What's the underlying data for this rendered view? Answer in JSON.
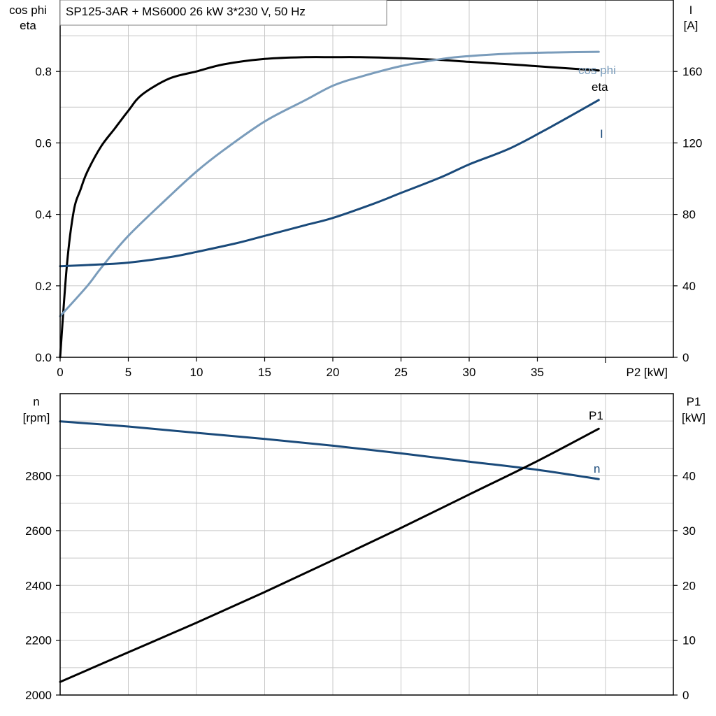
{
  "chart_data": [
    {
      "type": "line",
      "title": "SP125-3AR + MS6000   26 kW   3*230 V, 50 Hz",
      "xlabel": "P2 [kW]",
      "xlim": [
        0,
        45
      ],
      "x_ticks": [
        0,
        5,
        10,
        15,
        20,
        25,
        30,
        35
      ],
      "ylabel_left": [
        "cos phi",
        "eta"
      ],
      "ylim_left": [
        0,
        1.0
      ],
      "y_ticks_left": [
        "0.0",
        "0.2",
        "0.4",
        "0.6",
        "0.8"
      ],
      "y_tick_values_left": [
        0.0,
        0.2,
        0.4,
        0.6,
        0.8
      ],
      "ylabel_right": [
        "I",
        "[A]"
      ],
      "ylim_right": [
        0,
        200
      ],
      "y_ticks_right": [
        "0",
        "40",
        "80",
        "120",
        "160"
      ],
      "y_tick_values_right": [
        0,
        40,
        80,
        120,
        160
      ],
      "grid": true,
      "series": [
        {
          "name": "eta",
          "axis": "left",
          "color": "#000000",
          "x": [
            0,
            0.5,
            1,
            1.5,
            2,
            3,
            4,
            5,
            6,
            8,
            10,
            12,
            15,
            18,
            20,
            22,
            25,
            28,
            30,
            33,
            36,
            39.5
          ],
          "y": [
            0.0,
            0.26,
            0.41,
            0.47,
            0.52,
            0.59,
            0.64,
            0.69,
            0.735,
            0.78,
            0.8,
            0.82,
            0.835,
            0.84,
            0.84,
            0.84,
            0.837,
            0.832,
            0.827,
            0.82,
            0.812,
            0.803
          ]
        },
        {
          "name": "cos phi",
          "axis": "left",
          "color": "#7a9cbb",
          "x": [
            0,
            2,
            3,
            5,
            8,
            10,
            12,
            15,
            18,
            20,
            22,
            25,
            28,
            30,
            33,
            36,
            39.5
          ],
          "y": [
            0.115,
            0.2,
            0.25,
            0.34,
            0.45,
            0.52,
            0.58,
            0.66,
            0.72,
            0.76,
            0.785,
            0.815,
            0.835,
            0.843,
            0.85,
            0.853,
            0.855
          ]
        },
        {
          "name": "I",
          "axis": "right",
          "color": "#1a4a7a",
          "x": [
            0,
            3,
            5,
            8,
            10,
            13,
            15,
            18,
            20,
            23,
            25,
            28,
            30,
            33,
            36,
            39.5
          ],
          "y": [
            51,
            52,
            53,
            56,
            59,
            64,
            68,
            74,
            78,
            86,
            92,
            101,
            108,
            117,
            129,
            144
          ]
        }
      ]
    },
    {
      "type": "line",
      "xlim": [
        0,
        45
      ],
      "ylabel_left": [
        "n",
        "[rpm]"
      ],
      "ylim_left": [
        2000,
        3100
      ],
      "y_ticks_left": [
        "2000",
        "2200",
        "2400",
        "2600",
        "2800"
      ],
      "y_tick_values_left": [
        2000,
        2200,
        2400,
        2600,
        2800
      ],
      "ylabel_right": [
        "P1",
        "[kW]"
      ],
      "ylim_right": [
        0,
        55
      ],
      "y_ticks_right": [
        "0",
        "10",
        "20",
        "30",
        "40"
      ],
      "y_tick_values_right": [
        0,
        10,
        20,
        30,
        40
      ],
      "grid": true,
      "series": [
        {
          "name": "n",
          "axis": "left",
          "color": "#1a4a7a",
          "x": [
            0,
            5,
            10,
            15,
            20,
            25,
            30,
            35,
            39.5
          ],
          "y": [
            2999,
            2980,
            2957,
            2935,
            2910,
            2882,
            2852,
            2822,
            2788
          ]
        },
        {
          "name": "P1",
          "axis": "right",
          "color": "#000000",
          "x": [
            0,
            5,
            10,
            15,
            20,
            25,
            30,
            35,
            39.5
          ],
          "y": [
            2.4,
            7.8,
            13.2,
            18.8,
            24.6,
            30.5,
            36.6,
            42.7,
            48.6
          ]
        }
      ]
    }
  ]
}
